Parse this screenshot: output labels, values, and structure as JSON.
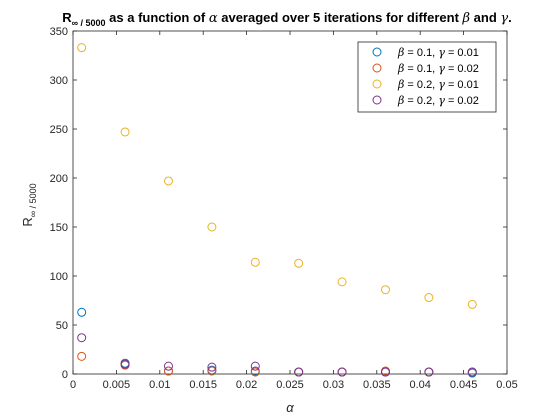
{
  "chart_data": {
    "type": "scatter",
    "title": "R∞ / 5000 as a function of α averaged over 5 iterations for different β and γ.",
    "xlabel": "α",
    "ylabel": "R∞ / 5000",
    "xlim": [
      0,
      0.05
    ],
    "ylim": [
      0,
      350
    ],
    "xticks": [
      "0",
      "0.005",
      "0.01",
      "0.015",
      "0.02",
      "0.025",
      "0.03",
      "0.035",
      "0.04",
      "0.045",
      "0.05"
    ],
    "yticks": [
      "0",
      "50",
      "100",
      "150",
      "200",
      "250",
      "300",
      "350"
    ],
    "grid": false,
    "legend_position": "top-right",
    "series": [
      {
        "name": "β = 0.1, γ = 0.01",
        "color": "#0072BD",
        "x": [
          0.001,
          0.006,
          0.011,
          0.016,
          0.021,
          0.026,
          0.031,
          0.036,
          0.041,
          0.046
        ],
        "y": [
          63,
          11,
          3,
          4,
          3,
          2,
          2,
          2,
          2,
          1
        ]
      },
      {
        "name": "β = 0.1, γ = 0.02",
        "color": "#D95319",
        "x": [
          0.001,
          0.006,
          0.011,
          0.016,
          0.021,
          0.026,
          0.031,
          0.036,
          0.041,
          0.046
        ],
        "y": [
          18,
          9,
          3,
          3,
          2,
          2,
          2,
          3,
          2,
          2
        ]
      },
      {
        "name": "β = 0.2, γ = 0.01",
        "color": "#EDB120",
        "x": [
          0.001,
          0.006,
          0.011,
          0.016,
          0.021,
          0.026,
          0.031,
          0.036,
          0.041,
          0.046
        ],
        "y": [
          333,
          247,
          197,
          150,
          114,
          113,
          94,
          86,
          78,
          71
        ]
      },
      {
        "name": "β = 0.2, γ = 0.02",
        "color": "#7E2F8E",
        "x": [
          0.001,
          0.006,
          0.011,
          0.016,
          0.021,
          0.026,
          0.031,
          0.036,
          0.041,
          0.046
        ],
        "y": [
          37,
          10,
          8,
          7,
          8,
          2,
          2,
          2,
          2,
          2
        ]
      }
    ]
  }
}
